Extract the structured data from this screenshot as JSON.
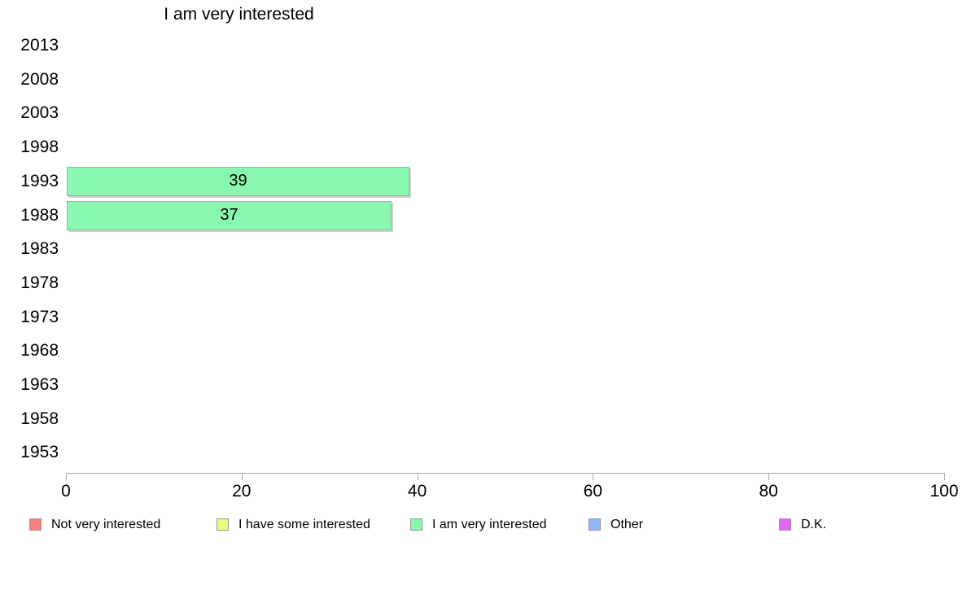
{
  "chart_data": {
    "type": "bar",
    "orientation": "horizontal",
    "title": "I am very interested",
    "categories": [
      "2013",
      "2008",
      "2003",
      "1998",
      "1993",
      "1988",
      "1983",
      "1978",
      "1973",
      "1968",
      "1963",
      "1958",
      "1953"
    ],
    "values": [
      null,
      null,
      null,
      null,
      39,
      37,
      null,
      null,
      null,
      null,
      null,
      null,
      null
    ],
    "bar_labels": [
      "",
      "",
      "",
      "",
      "39",
      "37",
      "",
      "",
      "",
      "",
      "",
      "",
      ""
    ],
    "xlim": [
      0,
      100
    ],
    "x_ticks": [
      0,
      20,
      40,
      60,
      80,
      100
    ],
    "grid": false,
    "legend_position": "bottom",
    "series_color": "#88f7af",
    "axis_color": "#a9a9a9",
    "legend": [
      {
        "label": "Not very interested",
        "color": "#f58080"
      },
      {
        "label": "I have some interested",
        "color": "#eaf97e"
      },
      {
        "label": "I am very interested",
        "color": "#88f7af"
      },
      {
        "label": "Other",
        "color": "#90b7f7"
      },
      {
        "label": "D.K.",
        "color": "#e366f2"
      }
    ]
  }
}
